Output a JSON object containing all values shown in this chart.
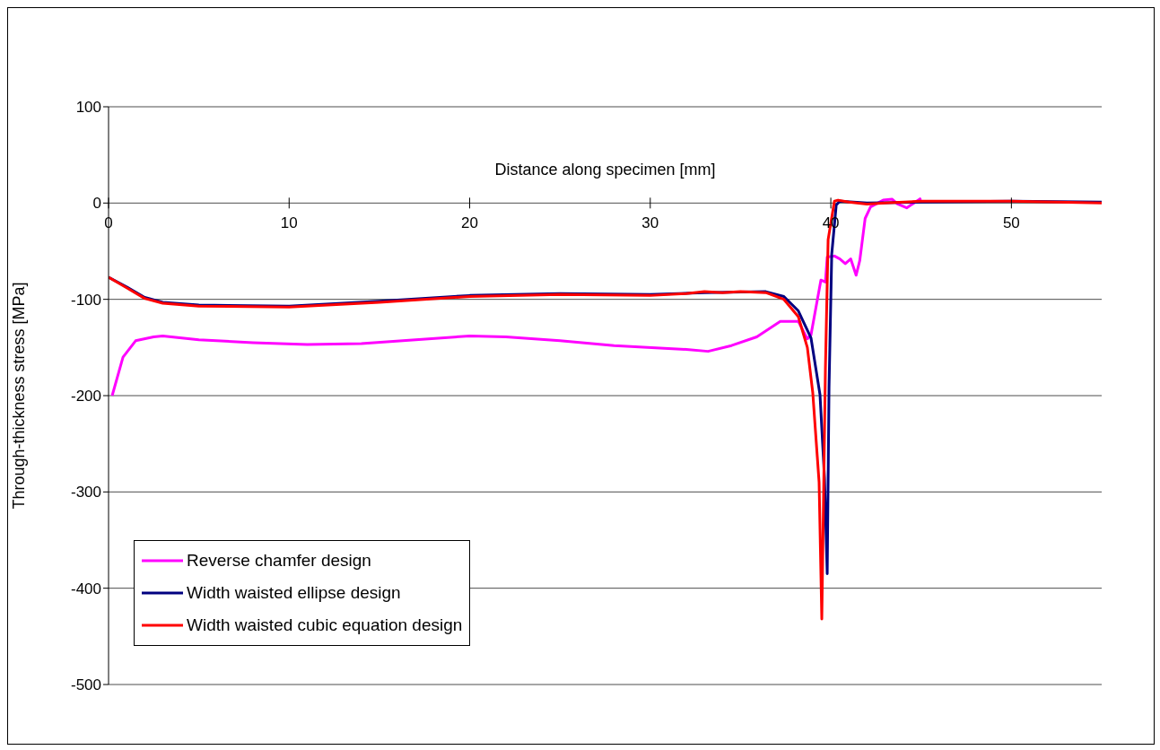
{
  "chart_data": {
    "type": "line",
    "xlabel": "Distance along specimen [mm]",
    "ylabel": "Through-thickness stress [MPa]",
    "xlim": [
      0,
      55
    ],
    "ylim": [
      -500,
      100
    ],
    "xticks": [
      0,
      10,
      20,
      30,
      40,
      50
    ],
    "yticks": [
      -500,
      -400,
      -300,
      -200,
      -100,
      0,
      100
    ],
    "grid": "y",
    "legend": "bottom left",
    "marker": "none",
    "line_style": "solid",
    "series": [
      {
        "name": "Reverse chamfer design",
        "color": "#ff00ff",
        "x": [
          0.2,
          0.8,
          1.5,
          2.5,
          3,
          5,
          8,
          11,
          14,
          17,
          20,
          22,
          25,
          28,
          31,
          32,
          33.2,
          34.5,
          35.9,
          37.2,
          38.2,
          38.7,
          38.9,
          39.45,
          39.7,
          39.8,
          40.2,
          40.5,
          40.8,
          41.1,
          41.4,
          41.6,
          41.9,
          42.2,
          42.9,
          43.4,
          43.7,
          44.2,
          45
        ],
        "values": [
          -200,
          -160,
          -143,
          -139,
          -138,
          -142,
          -145,
          -147,
          -146,
          -142,
          -138,
          -139,
          -143,
          -148,
          -151,
          -152,
          -154,
          -148,
          -139,
          -123,
          -123,
          -141,
          -137,
          -80,
          -82,
          -56,
          -55,
          -58,
          -63,
          -58,
          -75,
          -60,
          -16,
          -4,
          3,
          4,
          -1,
          -5,
          5
        ]
      },
      {
        "name": "Width waisted ellipse design",
        "color": "#000080",
        "x": [
          0,
          1,
          2,
          3,
          5,
          10,
          15,
          20,
          25,
          30,
          33,
          36.4,
          37.4,
          38.2,
          38.9,
          39.4,
          39.65,
          39.8,
          39.9,
          40.05,
          40.3,
          40.5,
          42,
          45,
          50,
          55
        ],
        "values": [
          -77,
          -87,
          -98,
          -103,
          -106,
          -107,
          -102,
          -96,
          -94,
          -95,
          -93,
          -92,
          -97,
          -112,
          -140,
          -199,
          -286,
          -385,
          -192,
          -53,
          -2,
          2,
          0,
          1,
          2,
          1
        ]
      },
      {
        "name": "Width waisted cubic equation design",
        "color": "#ff0000",
        "x": [
          0,
          1,
          2,
          3,
          5,
          10,
          15,
          20,
          25,
          30,
          32,
          33,
          34,
          35,
          36.4,
          37.4,
          38.2,
          38.7,
          39,
          39.35,
          39.5,
          39.7,
          39.85,
          40.2,
          40.4,
          41,
          42,
          43,
          45,
          50,
          55
        ],
        "values": [
          -77,
          -88,
          -99,
          -104,
          -107,
          -108,
          -103,
          -97,
          -95,
          -96,
          -94,
          -92,
          -93,
          -92,
          -93,
          -100,
          -118,
          -150,
          -197,
          -290,
          -432,
          -172,
          -38,
          2,
          3,
          1,
          -1,
          0,
          2,
          2,
          0
        ]
      }
    ]
  }
}
